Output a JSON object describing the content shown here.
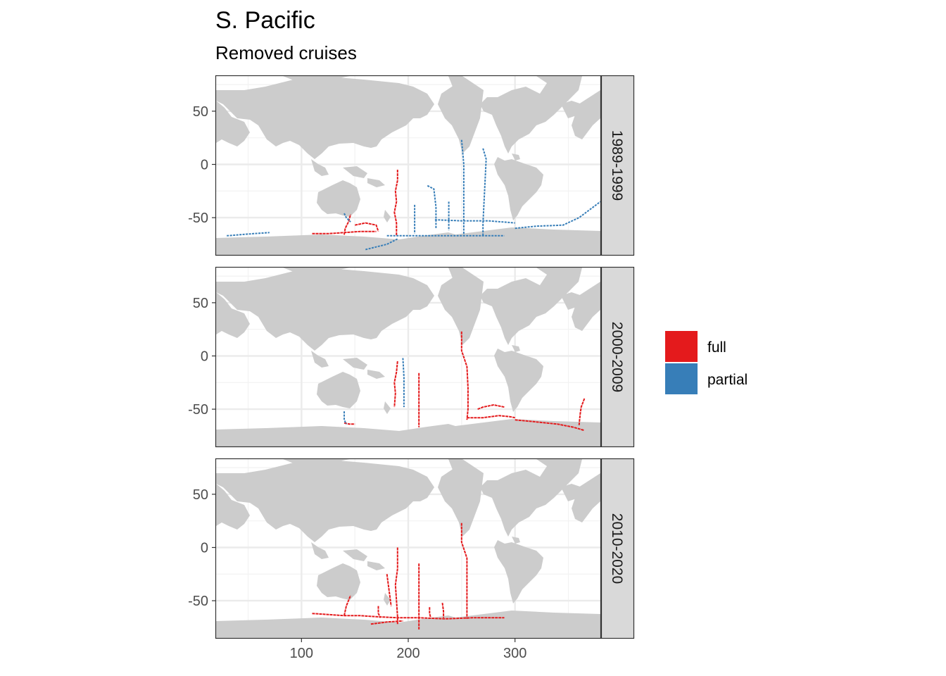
{
  "chart_data": {
    "type": "scatter",
    "title": "S. Pacific",
    "subtitle": "Removed cruises",
    "xlabel": "",
    "ylabel": "",
    "xlim": [
      20,
      380
    ],
    "ylim": [
      -85,
      83
    ],
    "x_ticks": [
      100,
      200,
      300
    ],
    "y_ticks": [
      50,
      0,
      -50
    ],
    "x_tick_labels": [
      "100",
      "200",
      "300"
    ],
    "y_tick_labels": [
      "50",
      "0",
      "-50"
    ],
    "grid": true,
    "legend_position": "right",
    "legend": [
      {
        "label": "full",
        "color": "#e41a1c"
      },
      {
        "label": "partial",
        "color": "#377eb8"
      }
    ],
    "facets": [
      {
        "label": "1989-1999",
        "tracks": [
          {
            "category": "full",
            "points": [
              [
                190,
                -5
              ],
              [
                190,
                -15
              ],
              [
                188,
                -25
              ],
              [
                189,
                -35
              ],
              [
                187,
                -45
              ],
              [
                189,
                -55
              ],
              [
                189,
                -67
              ]
            ]
          },
          {
            "category": "full",
            "points": [
              [
                140,
                -66
              ],
              [
                141,
                -60
              ],
              [
                144,
                -54
              ],
              [
                146,
                -47
              ]
            ]
          },
          {
            "category": "full",
            "points": [
              [
                110,
                -65
              ],
              [
                125,
                -65
              ],
              [
                140,
                -64
              ],
              [
                155,
                -63
              ],
              [
                170,
                -63
              ]
            ]
          },
          {
            "category": "full",
            "points": [
              [
                150,
                -57
              ],
              [
                160,
                -55
              ],
              [
                170,
                -57
              ],
              [
                172,
                -63
              ]
            ]
          },
          {
            "category": "partial",
            "points": [
              [
                250,
                23
              ],
              [
                252,
                0
              ],
              [
                252,
                -25
              ],
              [
                252,
                -50
              ],
              [
                252,
                -67
              ]
            ]
          },
          {
            "category": "partial",
            "points": [
              [
                270,
                15
              ],
              [
                273,
                5
              ],
              [
                272,
                -15
              ],
              [
                271,
                -35
              ],
              [
                270,
                -55
              ],
              [
                270,
                -67
              ]
            ]
          },
          {
            "category": "partial",
            "points": [
              [
                180,
                -67
              ],
              [
                210,
                -67
              ],
              [
                240,
                -67
              ],
              [
                270,
                -67
              ],
              [
                290,
                -67
              ]
            ]
          },
          {
            "category": "partial",
            "points": [
              [
                225,
                -52
              ],
              [
                250,
                -53
              ],
              [
                275,
                -53
              ],
              [
                300,
                -55
              ]
            ]
          },
          {
            "category": "partial",
            "points": [
              [
                218,
                -20
              ],
              [
                224,
                -23
              ],
              [
                226,
                -40
              ],
              [
                226,
                -60
              ]
            ]
          },
          {
            "category": "partial",
            "points": [
              [
                206,
                -38
              ],
              [
                206,
                -55
              ],
              [
                206,
                -65
              ]
            ]
          },
          {
            "category": "partial",
            "points": [
              [
                238,
                -35
              ],
              [
                238,
                -48
              ],
              [
                238,
                -62
              ]
            ]
          },
          {
            "category": "partial",
            "points": [
              [
                300,
                -60
              ],
              [
                320,
                -58
              ],
              [
                345,
                -57
              ],
              [
                360,
                -50
              ],
              [
                380,
                -35
              ]
            ]
          },
          {
            "category": "partial",
            "points": [
              [
                160,
                -80
              ],
              [
                180,
                -75
              ],
              [
                190,
                -70
              ]
            ]
          },
          {
            "category": "partial",
            "points": [
              [
                30,
                -67
              ],
              [
                55,
                -65
              ],
              [
                70,
                -64
              ]
            ]
          },
          {
            "category": "partial",
            "points": [
              [
                140,
                -46
              ],
              [
                142,
                -50
              ],
              [
                146,
                -54
              ]
            ]
          }
        ]
      },
      {
        "label": "2000-2009",
        "tracks": [
          {
            "category": "full",
            "points": [
              [
                190,
                -5
              ],
              [
                189,
                -15
              ],
              [
                187,
                -25
              ],
              [
                188,
                -35
              ],
              [
                187,
                -48
              ]
            ]
          },
          {
            "category": "full",
            "points": [
              [
                210,
                -16
              ],
              [
                210,
                -30
              ],
              [
                210,
                -45
              ],
              [
                210,
                -67
              ]
            ]
          },
          {
            "category": "full",
            "points": [
              [
                250,
                23
              ],
              [
                250,
                10
              ],
              [
                250,
                5
              ],
              [
                255,
                -10
              ],
              [
                256,
                -30
              ],
              [
                256,
                -50
              ],
              [
                255,
                -60
              ]
            ]
          },
          {
            "category": "full",
            "points": [
              [
                255,
                -58
              ],
              [
                270,
                -58
              ],
              [
                285,
                -56
              ],
              [
                295,
                -57
              ],
              [
                300,
                -58
              ]
            ]
          },
          {
            "category": "full",
            "points": [
              [
                265,
                -50
              ],
              [
                270,
                -48
              ],
              [
                280,
                -46
              ],
              [
                290,
                -48
              ]
            ]
          },
          {
            "category": "full",
            "points": [
              [
                300,
                -60
              ],
              [
                320,
                -62
              ],
              [
                340,
                -64
              ],
              [
                355,
                -67
              ],
              [
                365,
                -70
              ]
            ]
          },
          {
            "category": "full",
            "points": [
              [
                365,
                -40
              ],
              [
                362,
                -48
              ],
              [
                361,
                -55
              ],
              [
                360,
                -65
              ]
            ]
          },
          {
            "category": "full",
            "points": [
              [
                140,
                -63
              ],
              [
                145,
                -64
              ],
              [
                150,
                -64
              ]
            ]
          },
          {
            "category": "partial",
            "points": [
              [
                195,
                -2
              ],
              [
                196,
                -20
              ],
              [
                196,
                -40
              ],
              [
                196,
                -48
              ]
            ]
          },
          {
            "category": "partial",
            "points": [
              [
                140,
                -52
              ],
              [
                140,
                -60
              ],
              [
                142,
                -64
              ]
            ]
          }
        ]
      },
      {
        "label": "2010-2020",
        "tracks": [
          {
            "category": "full",
            "points": [
              [
                190,
                0
              ],
              [
                190,
                -20
              ],
              [
                188,
                -35
              ],
              [
                189,
                -50
              ],
              [
                190,
                -65
              ],
              [
                190,
                -72
              ]
            ]
          },
          {
            "category": "full",
            "points": [
              [
                210,
                -15
              ],
              [
                210,
                -35
              ],
              [
                210,
                -55
              ],
              [
                210,
                -77
              ]
            ]
          },
          {
            "category": "full",
            "points": [
              [
                250,
                23
              ],
              [
                250,
                5
              ],
              [
                255,
                -10
              ],
              [
                255,
                -35
              ],
              [
                255,
                -55
              ],
              [
                255,
                -67
              ]
            ]
          },
          {
            "category": "full",
            "points": [
              [
                110,
                -62
              ],
              [
                125,
                -63
              ],
              [
                140,
                -64
              ],
              [
                155,
                -64
              ],
              [
                170,
                -65
              ],
              [
                190,
                -66
              ],
              [
                210,
                -66
              ],
              [
                235,
                -67
              ],
              [
                260,
                -66
              ],
              [
                290,
                -66
              ]
            ]
          },
          {
            "category": "full",
            "points": [
              [
                140,
                -64
              ],
              [
                142,
                -55
              ],
              [
                146,
                -45
              ]
            ]
          },
          {
            "category": "full",
            "points": [
              [
                180,
                -25
              ],
              [
                182,
                -40
              ],
              [
                184,
                -55
              ]
            ]
          },
          {
            "category": "full",
            "points": [
              [
                172,
                -55
              ],
              [
                172,
                -62
              ],
              [
                174,
                -66
              ]
            ]
          },
          {
            "category": "full",
            "points": [
              [
                232,
                -52
              ],
              [
                233,
                -60
              ],
              [
                233,
                -66
              ]
            ]
          },
          {
            "category": "full",
            "points": [
              [
                165,
                -72
              ],
              [
                180,
                -70
              ],
              [
                195,
                -69
              ]
            ]
          },
          {
            "category": "full",
            "points": [
              [
                220,
                -56
              ],
              [
                220,
                -62
              ],
              [
                221,
                -66
              ]
            ]
          }
        ]
      }
    ]
  }
}
